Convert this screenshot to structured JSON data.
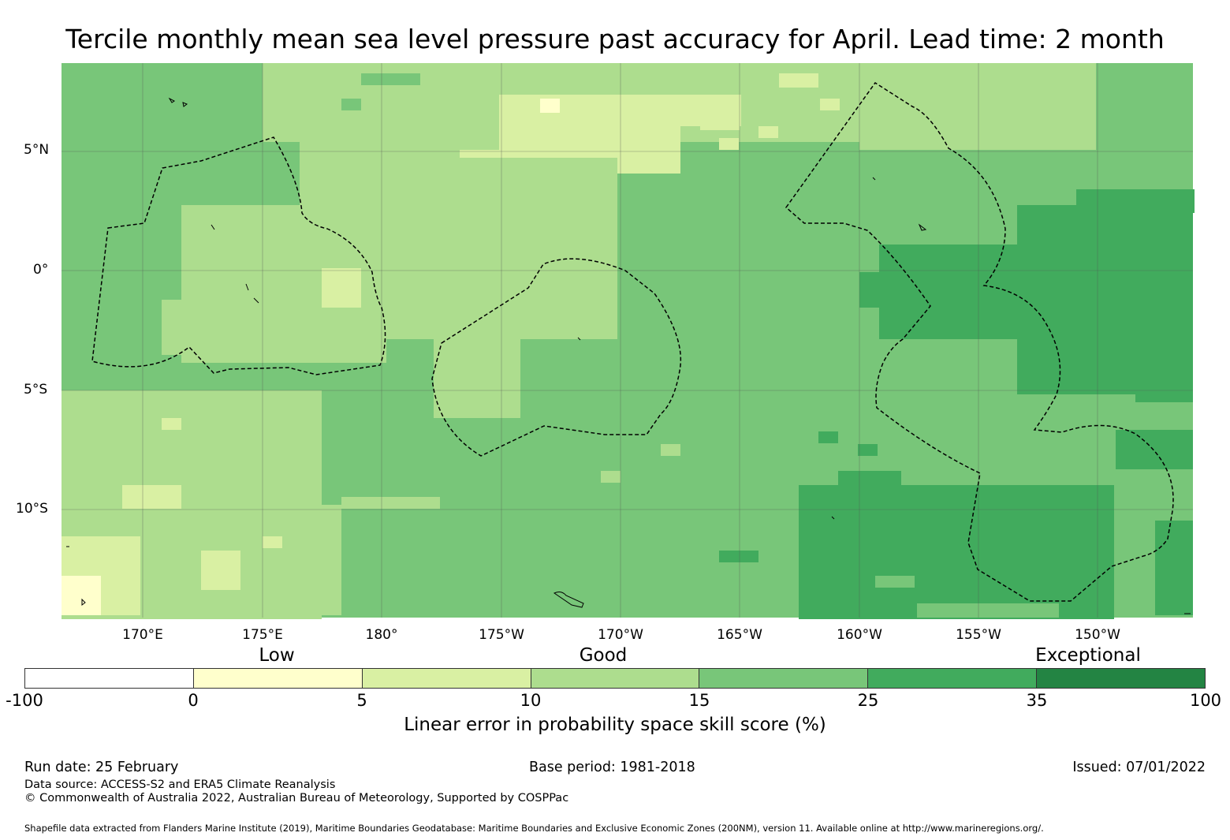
{
  "title": "Tercile monthly mean sea level pressure past accuracy for April. Lead time: 2 month",
  "map": {
    "lat_labels": [
      "5°N",
      "0°",
      "5°S",
      "10°S"
    ],
    "lon_labels": [
      "170°E",
      "175°E",
      "180°",
      "175°W",
      "170°W",
      "165°W",
      "160°W",
      "155°W",
      "150°W"
    ],
    "colors": {
      "c0": "#ffffcc",
      "c1": "#d9f0a3",
      "c2": "#addd8e",
      "c3": "#78c679",
      "c4": "#41ab5d",
      "c5": "#238443",
      "grid": "#555555",
      "eez": "#000000"
    },
    "zones": [
      {
        "region": "central_pacific",
        "category": "15-25"
      },
      {
        "region": "northwest_170E",
        "category": "15-25"
      },
      {
        "region": "tuvalu_kiribati_band",
        "category": "10-15"
      },
      {
        "region": "southwest_170E_178E",
        "category": "10-15"
      },
      {
        "region": "east_150W_to_160W_north",
        "category": "25-35"
      },
      {
        "region": "east_south_155W_160W",
        "category": "25-35"
      },
      {
        "region": "north_180_170W",
        "category": "5-10"
      },
      {
        "region": "north_170W_175W_peak",
        "category": "0-5"
      },
      {
        "region": "southwest_corner",
        "category": "0-5"
      }
    ],
    "eez_outlines": [
      "gilbert_islands",
      "tuvalu",
      "tokelau_samoa",
      "phoenix_line_islands",
      "cook_islands"
    ]
  },
  "colorbar": {
    "category_labels": [
      "Low",
      "Good",
      "Exceptional"
    ],
    "segments": [
      {
        "from": -100,
        "to": 0,
        "color": "#ffffff"
      },
      {
        "from": 0,
        "to": 5,
        "color": "#ffffcc"
      },
      {
        "from": 5,
        "to": 10,
        "color": "#d9f0a3"
      },
      {
        "from": 10,
        "to": 15,
        "color": "#addd8e"
      },
      {
        "from": 15,
        "to": 25,
        "color": "#78c679"
      },
      {
        "from": 25,
        "to": 35,
        "color": "#41ab5d"
      },
      {
        "from": 35,
        "to": 100,
        "color": "#238443"
      }
    ],
    "ticks": [
      "-100",
      "0",
      "5",
      "10",
      "15",
      "25",
      "35",
      "100"
    ],
    "label": "Linear error in probability space skill score (%)"
  },
  "footer": {
    "run_date": "Run date: 25 February",
    "base_period": "Base period: 1981-2018",
    "issued": "Issued: 07/01/2022",
    "data_source": "Data source: ACCESS-S2 and ERA5 Climate Reanalysis",
    "copyright": "© Commonwealth of Australia 2022, Australian Bureau of Meteorology, Supported by COSPPac",
    "shapefile": "Shapefile data extracted from Flanders Marine Institute (2019), Maritime Boundaries Geodatabase: Maritime Boundaries and Exclusive Economic Zones (200NM), version 11. Available online at http://www.marineregions.org/."
  }
}
